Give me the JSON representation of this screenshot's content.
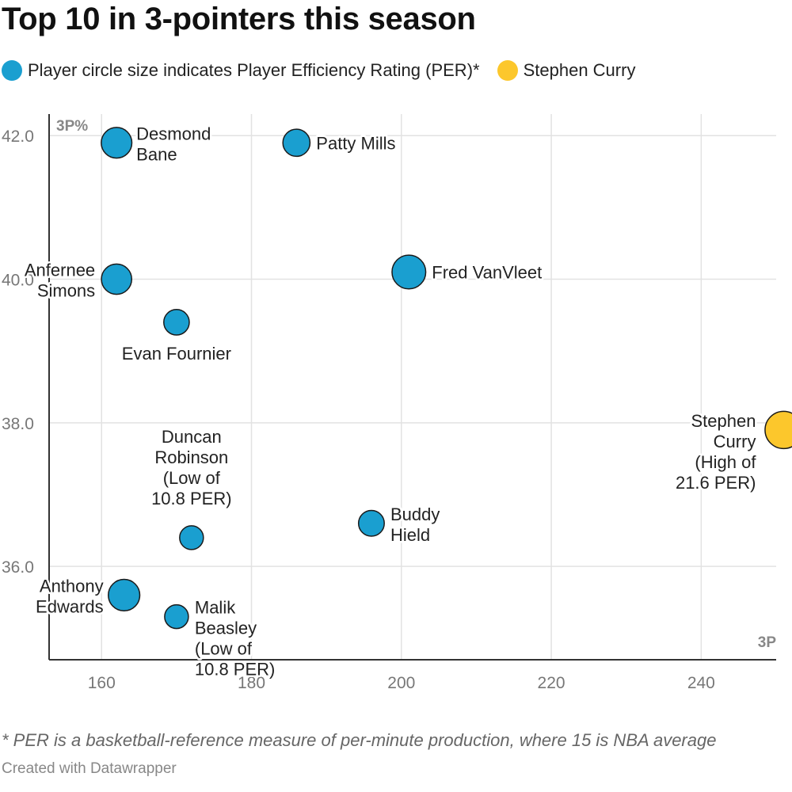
{
  "title": "Top 10 in 3-pointers this season",
  "legend": [
    {
      "label": "Player circle size indicates Player Efficiency Rating (PER)*",
      "color": "#1a9fd0"
    },
    {
      "label": "Stephen Curry",
      "color": "#fcc72c"
    }
  ],
  "footnote": "* PER is a basketball-reference measure of per-minute production, where 15 is NBA average",
  "credit": "Created with Datawrapper",
  "chart_data": {
    "type": "scatter",
    "title": "Top 10 in 3-pointers this season",
    "xlabel": "3P",
    "ylabel": "3P%",
    "xlim": [
      153,
      250
    ],
    "ylim": [
      34.7,
      42.3
    ],
    "x_ticks": [
      160,
      180,
      200,
      220,
      240
    ],
    "y_ticks": [
      36.0,
      38.0,
      40.0,
      42.0
    ],
    "x_tick_labels": [
      "160",
      "180",
      "200",
      "220",
      "240"
    ],
    "y_tick_labels": [
      "36.0",
      "38.0",
      "40.0",
      "42.0"
    ],
    "grid": true,
    "legend_position": "top",
    "size_encoding": "PER",
    "points": [
      {
        "label_lines": [
          "Desmond",
          "Bane"
        ],
        "x": 162,
        "y": 41.9,
        "per": 16.3,
        "color": "#1a9fd0"
      },
      {
        "label_lines": [
          "Patty Mills"
        ],
        "x": 186,
        "y": 41.9,
        "per": 13.5,
        "color": "#1a9fd0"
      },
      {
        "label_lines": [
          "Anfernee",
          "Simons"
        ],
        "x": 162,
        "y": 40.0,
        "per": 16.0,
        "color": "#1a9fd0"
      },
      {
        "label_lines": [
          "Fred VanVleet"
        ],
        "x": 201,
        "y": 40.1,
        "per": 18.8,
        "color": "#1a9fd0"
      },
      {
        "label_lines": [
          "Evan Fournier"
        ],
        "x": 170,
        "y": 39.4,
        "per": 12.2,
        "color": "#1a9fd0"
      },
      {
        "label_lines": [
          "Stephen",
          "Curry",
          "(High of",
          "21.6 PER)"
        ],
        "x": 251,
        "y": 37.9,
        "per": 21.6,
        "color": "#fcc72c"
      },
      {
        "label_lines": [
          "Duncan",
          "Robinson",
          "(Low of",
          "10.8 PER)"
        ],
        "x": 172,
        "y": 36.4,
        "per": 10.8,
        "color": "#1a9fd0"
      },
      {
        "label_lines": [
          "Buddy",
          "Hield"
        ],
        "x": 196,
        "y": 36.6,
        "per": 12.4,
        "color": "#1a9fd0"
      },
      {
        "label_lines": [
          "Anthony",
          "Edwards"
        ],
        "x": 163,
        "y": 35.6,
        "per": 17.0,
        "color": "#1a9fd0"
      },
      {
        "label_lines": [
          "Malik",
          "Beasley",
          "(Low of",
          "10.8 PER)"
        ],
        "x": 170,
        "y": 35.3,
        "per": 10.8,
        "color": "#1a9fd0"
      }
    ]
  }
}
